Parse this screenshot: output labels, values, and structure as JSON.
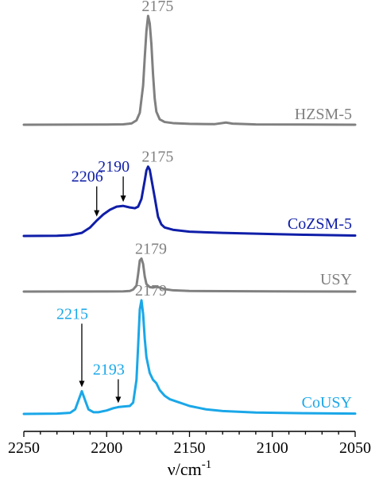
{
  "chart_data": {
    "type": "line",
    "xlabel": "ν/cm",
    "xlabel_sup": "-1",
    "xlim": [
      2250,
      2050
    ],
    "x_reversed": true,
    "x_ticks": [
      2250,
      2200,
      2150,
      2100,
      2050
    ],
    "x_tick_labels": [
      "2250",
      "2200",
      "2150",
      "2100",
      "2050"
    ],
    "y_axis_visible": false,
    "grid": false,
    "series": [
      {
        "name": "HZSM-5",
        "color": "#808080",
        "points": [
          [
            2250,
            0
          ],
          [
            2200,
            0.002
          ],
          [
            2190,
            0.004
          ],
          [
            2185,
            0.012
          ],
          [
            2182,
            0.04
          ],
          [
            2180,
            0.11
          ],
          [
            2178,
            0.36
          ],
          [
            2177,
            0.62
          ],
          [
            2176,
            0.86
          ],
          [
            2175,
            1.0
          ],
          [
            2174,
            0.93
          ],
          [
            2173,
            0.74
          ],
          [
            2172,
            0.46
          ],
          [
            2171,
            0.24
          ],
          [
            2170,
            0.12
          ],
          [
            2168,
            0.05
          ],
          [
            2165,
            0.025
          ],
          [
            2160,
            0.015
          ],
          [
            2150,
            0.008
          ],
          [
            2135,
            0.005
          ],
          [
            2128,
            0.02
          ],
          [
            2124,
            0.01
          ],
          [
            2110,
            0.003
          ],
          [
            2050,
            0
          ]
        ]
      },
      {
        "name": "CoZSM-5",
        "color": "#0F1EA8",
        "points": [
          [
            2250,
            0
          ],
          [
            2230,
            0.003
          ],
          [
            2222,
            0.01
          ],
          [
            2215,
            0.04
          ],
          [
            2210,
            0.11
          ],
          [
            2206,
            0.2
          ],
          [
            2202,
            0.28
          ],
          [
            2198,
            0.34
          ],
          [
            2194,
            0.38
          ],
          [
            2190,
            0.39
          ],
          [
            2186,
            0.37
          ],
          [
            2183,
            0.36
          ],
          [
            2181,
            0.38
          ],
          [
            2179,
            0.48
          ],
          [
            2177,
            0.72
          ],
          [
            2176,
            0.85
          ],
          [
            2175,
            0.9
          ],
          [
            2174,
            0.86
          ],
          [
            2173,
            0.74
          ],
          [
            2171,
            0.5
          ],
          [
            2169,
            0.25
          ],
          [
            2167,
            0.15
          ],
          [
            2165,
            0.11
          ],
          [
            2160,
            0.08
          ],
          [
            2150,
            0.055
          ],
          [
            2130,
            0.04
          ],
          [
            2100,
            0.025
          ],
          [
            2080,
            0.015
          ],
          [
            2050,
            0.005
          ]
        ]
      },
      {
        "name": "USY",
        "color": "#808080",
        "points": [
          [
            2250,
            0
          ],
          [
            2200,
            0.002
          ],
          [
            2190,
            0.004
          ],
          [
            2186,
            0.012
          ],
          [
            2184,
            0.04
          ],
          [
            2182,
            0.12
          ],
          [
            2181,
            0.35
          ],
          [
            2180,
            0.62
          ],
          [
            2179,
            0.66
          ],
          [
            2178,
            0.55
          ],
          [
            2177,
            0.3
          ],
          [
            2176,
            0.15
          ],
          [
            2174,
            0.09
          ],
          [
            2172,
            0.08
          ],
          [
            2170,
            0.095
          ],
          [
            2168,
            0.08
          ],
          [
            2165,
            0.05
          ],
          [
            2160,
            0.025
          ],
          [
            2150,
            0.012
          ],
          [
            2100,
            0.003
          ],
          [
            2050,
            0
          ]
        ]
      },
      {
        "name": "CoUSY",
        "color": "#1AA7E8",
        "points": [
          [
            2250,
            0
          ],
          [
            2230,
            0.003
          ],
          [
            2222,
            0.01
          ],
          [
            2219,
            0.04
          ],
          [
            2217,
            0.12
          ],
          [
            2215,
            0.2
          ],
          [
            2213,
            0.12
          ],
          [
            2211,
            0.04
          ],
          [
            2208,
            0.015
          ],
          [
            2205,
            0.015
          ],
          [
            2200,
            0.03
          ],
          [
            2196,
            0.05
          ],
          [
            2193,
            0.06
          ],
          [
            2190,
            0.065
          ],
          [
            2186,
            0.07
          ],
          [
            2184,
            0.1
          ],
          [
            2182,
            0.3
          ],
          [
            2181,
            0.6
          ],
          [
            2180,
            0.92
          ],
          [
            2179,
            1.0
          ],
          [
            2178,
            0.88
          ],
          [
            2177,
            0.66
          ],
          [
            2176,
            0.5
          ],
          [
            2174,
            0.36
          ],
          [
            2172,
            0.3
          ],
          [
            2170,
            0.27
          ],
          [
            2168,
            0.21
          ],
          [
            2165,
            0.16
          ],
          [
            2162,
            0.13
          ],
          [
            2158,
            0.11
          ],
          [
            2150,
            0.07
          ],
          [
            2140,
            0.04
          ],
          [
            2130,
            0.025
          ],
          [
            2110,
            0.012
          ],
          [
            2080,
            0.006
          ],
          [
            2050,
            0.003
          ]
        ]
      }
    ],
    "annotations": [
      {
        "series": "HZSM-5",
        "text": "2175",
        "x": 2175,
        "color": "#808080",
        "arrow": false
      },
      {
        "series": "CoZSM-5",
        "text": "2175",
        "x": 2175,
        "color": "#808080",
        "arrow": false
      },
      {
        "series": "CoZSM-5",
        "text": "2206",
        "x": 2206,
        "color": "#0F1EA8",
        "arrow": true
      },
      {
        "series": "CoZSM-5",
        "text": "2190",
        "x": 2190,
        "color": "#0F1EA8",
        "arrow": true
      },
      {
        "series": "USY",
        "text": "2179",
        "x": 2179,
        "color": "#808080",
        "arrow": false
      },
      {
        "series": "CoUSY",
        "text": "2179",
        "x": 2179,
        "color": "#808080",
        "arrow": false
      },
      {
        "series": "CoUSY",
        "text": "2215",
        "x": 2215,
        "color": "#1AA7E8",
        "arrow": true
      },
      {
        "series": "CoUSY",
        "text": "2193",
        "x": 2193,
        "color": "#1AA7E8",
        "arrow": true
      }
    ]
  }
}
